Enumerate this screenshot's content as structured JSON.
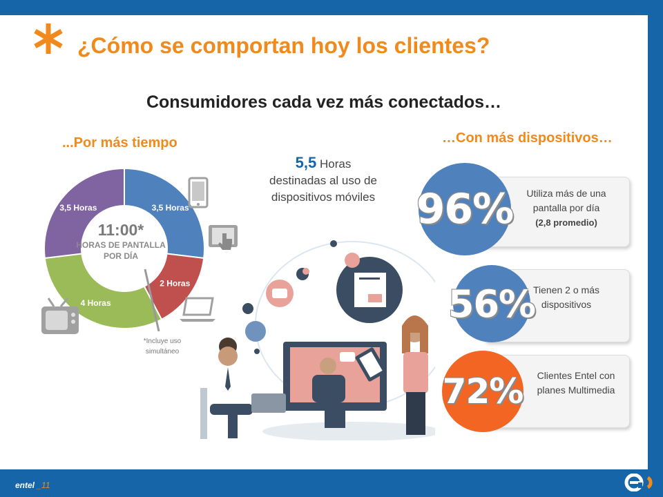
{
  "title": "¿Cómo se comportan hoy los clientes?",
  "subtitle": "Consumidores cada vez más conectados…",
  "left_section": {
    "heading": "...Por más tiempo",
    "center_value": "11:00*",
    "center_label": "HORAS DE PANTALLA POR DÍA",
    "segments": [
      {
        "label": "3,5 Horas",
        "hours": 3.5,
        "color": "#4f81bd"
      },
      {
        "label": "2 Horas",
        "hours": 2,
        "color": "#c0504d"
      },
      {
        "label": "4 Horas",
        "hours": 4,
        "color": "#9bbb59"
      },
      {
        "label": "3,5 Horas",
        "hours": 3.5,
        "color": "#8064a2"
      }
    ],
    "footnote": "*Incluye uso simultáneo"
  },
  "middle": {
    "hours_value": "5,5",
    "hours_unit": "Horas",
    "hours_desc": "destinadas al uso de dispositivos móviles"
  },
  "right_section": {
    "heading": "…Con más dispositivos…",
    "stats": [
      {
        "percent": "96%",
        "text": "Utiliza más de una pantalla por día",
        "note": "(2,8 promedio)",
        "color": "#4f81bd"
      },
      {
        "percent": "56%",
        "text": "Tienen 2 o más dispositivos",
        "note": "",
        "color": "#4f81bd"
      },
      {
        "percent": "72%",
        "text": "Clientes Entel con planes Multimedia",
        "note": "",
        "color": "#f26522"
      }
    ]
  },
  "footer": {
    "brand": "entel",
    "page": "_11"
  },
  "colors": {
    "accent": "#f08a1c",
    "frame": "#1565a8"
  }
}
